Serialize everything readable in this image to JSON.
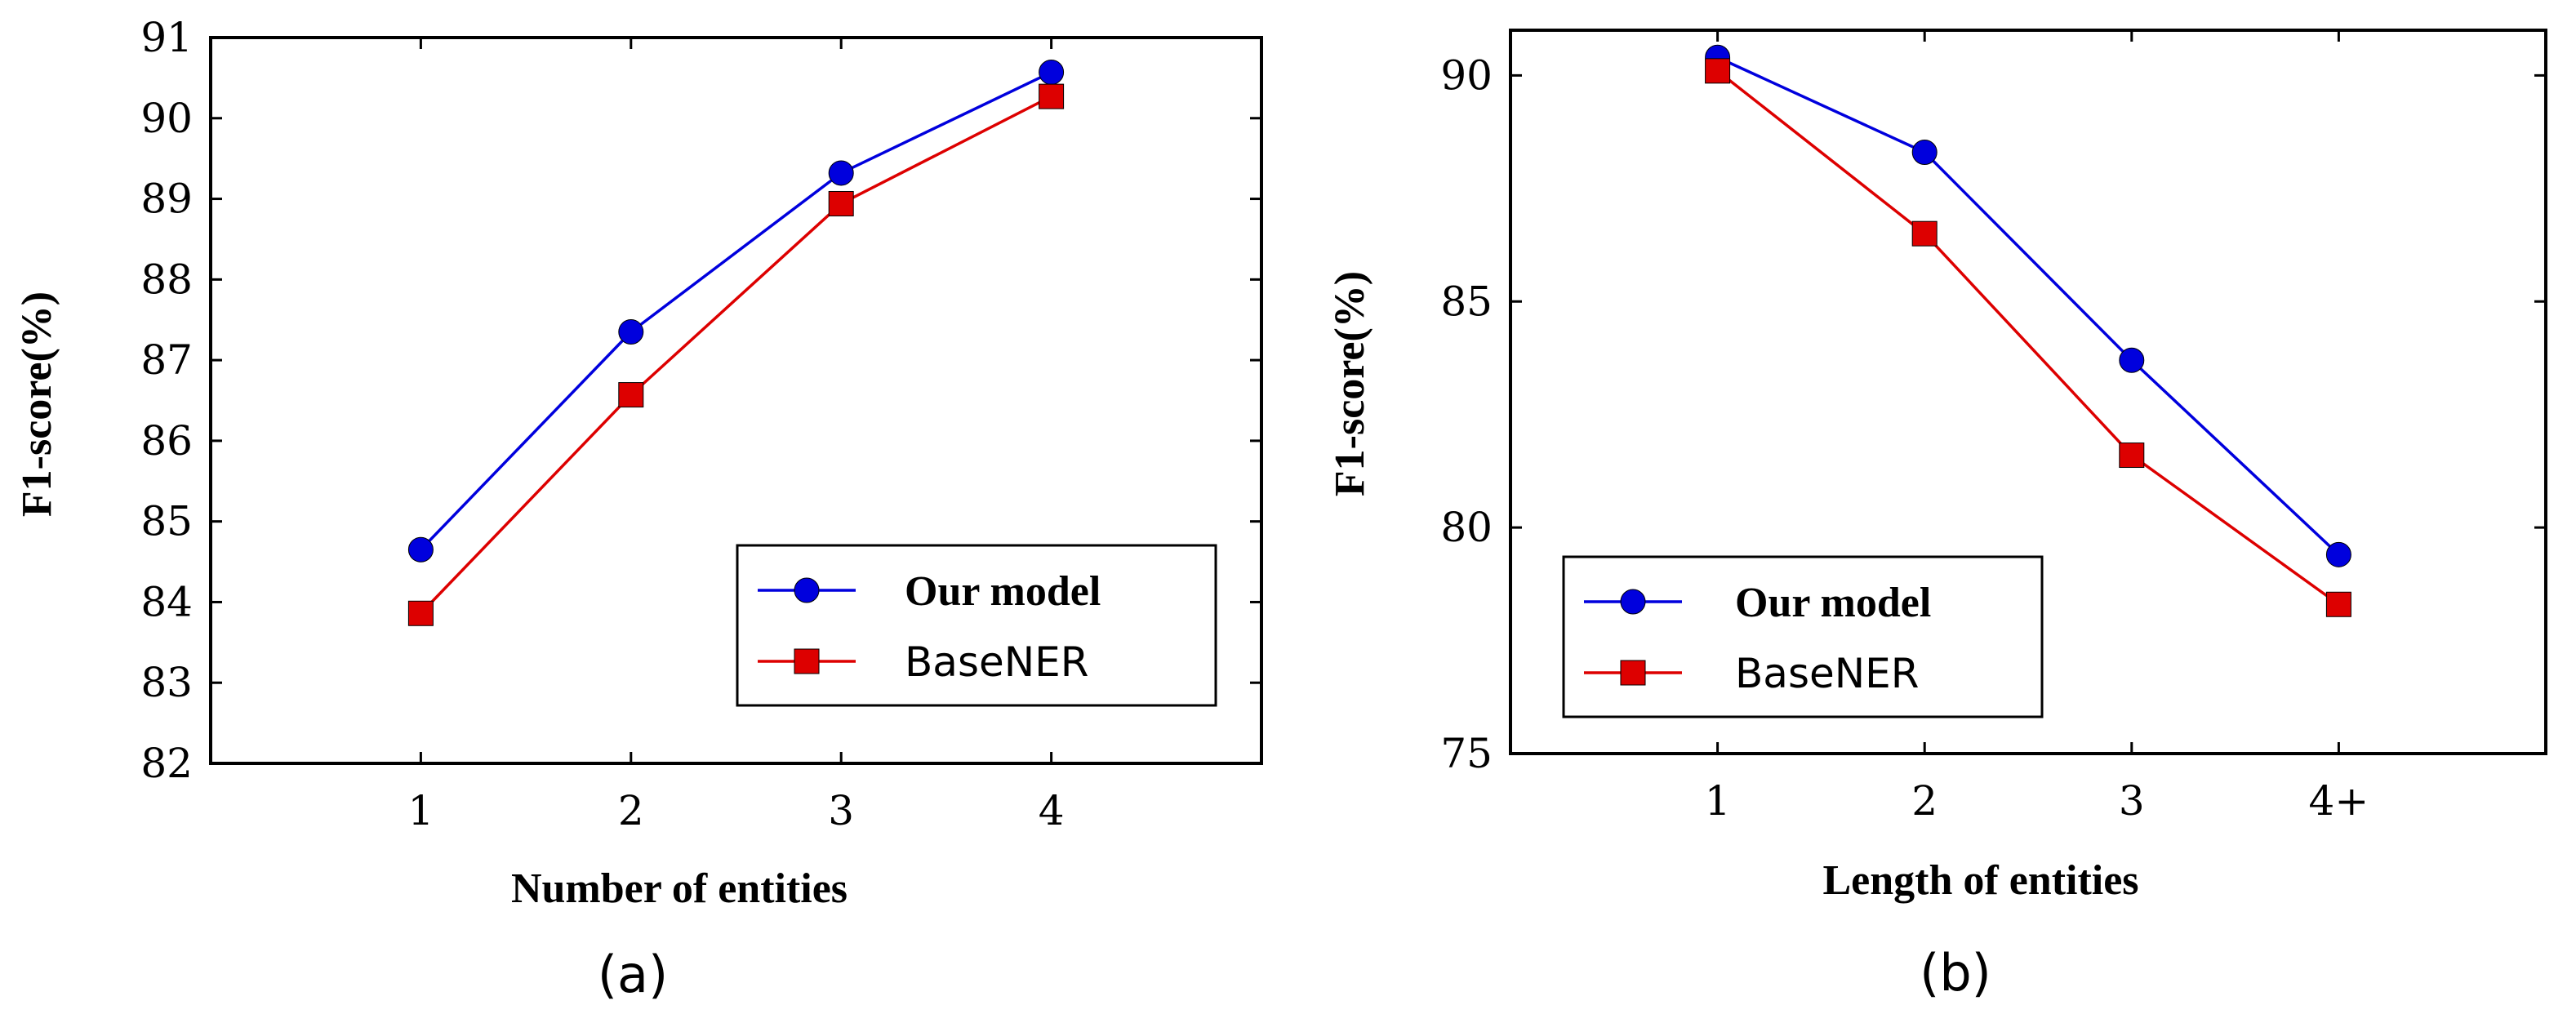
{
  "chart_data": [
    {
      "id": "a",
      "type": "line",
      "caption": "(a)",
      "xlabel": "Number of entities",
      "ylabel": "F1-score(%)",
      "categories": [
        "1",
        "2",
        "3",
        "4"
      ],
      "x": [
        1,
        2,
        3,
        4
      ],
      "xlim": [
        0,
        5
      ],
      "ylim": [
        82,
        91
      ],
      "yticks": [
        82,
        83,
        84,
        85,
        86,
        87,
        88,
        89,
        90,
        91
      ],
      "series": [
        {
          "name": "Our model",
          "color": "#0000dd",
          "marker": "circle",
          "values": [
            84.65,
            87.35,
            89.32,
            90.57
          ]
        },
        {
          "name": "BaseNER",
          "color": "#dd0000",
          "marker": "square",
          "values": [
            83.86,
            86.57,
            88.94,
            90.27
          ]
        }
      ],
      "legend": "bottom-right"
    },
    {
      "id": "b",
      "type": "line",
      "caption": "(b)",
      "xlabel": "Length of entities",
      "ylabel": "F1-score(%)",
      "categories": [
        "1",
        "2",
        "3",
        "4+"
      ],
      "x": [
        1,
        2,
        3,
        4
      ],
      "xlim": [
        0,
        5
      ],
      "ylim": [
        75,
        91
      ],
      "yticks": [
        75,
        80,
        85,
        90
      ],
      "series": [
        {
          "name": "Our model",
          "color": "#0000dd",
          "marker": "circle",
          "values": [
            90.4,
            88.3,
            83.7,
            79.4
          ]
        },
        {
          "name": "BaseNER",
          "color": "#dd0000",
          "marker": "square",
          "values": [
            90.1,
            86.5,
            81.6,
            78.3
          ]
        }
      ],
      "legend": "bottom-left"
    }
  ]
}
